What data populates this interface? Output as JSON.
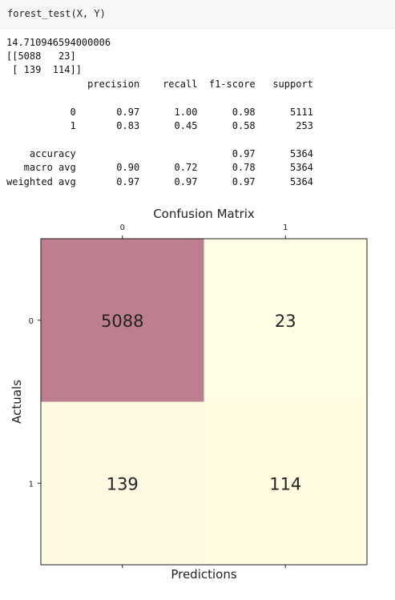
{
  "code_cell": {
    "source": "forest_test(X, Y)"
  },
  "output": {
    "elapsed": "14.710946594000006",
    "matrix_line_1": "[[5088   23]",
    "matrix_line_2": " [ 139  114]]",
    "report_header": "              precision    recall  f1-score   support",
    "report_rows": [
      "           0       0.97      1.00      0.98      5111",
      "           1       0.83      0.45      0.58       253",
      "    accuracy                           0.97      5364",
      "   macro avg       0.90      0.72      0.78      5364",
      "weighted avg       0.97      0.97      0.97      5364"
    ]
  },
  "chart_data": {
    "type": "heatmap",
    "title": "Confusion Matrix",
    "xlabel": "Predictions",
    "ylabel": "Actuals",
    "x_ticks": [
      "0",
      "1"
    ],
    "y_ticks": [
      "0",
      "1"
    ],
    "values": [
      [
        5088,
        23
      ],
      [
        139,
        114
      ]
    ],
    "colormap": "pink_r",
    "low_color": "#fffde3",
    "high_color": "#bd7f8f",
    "text_color": "#222222"
  }
}
